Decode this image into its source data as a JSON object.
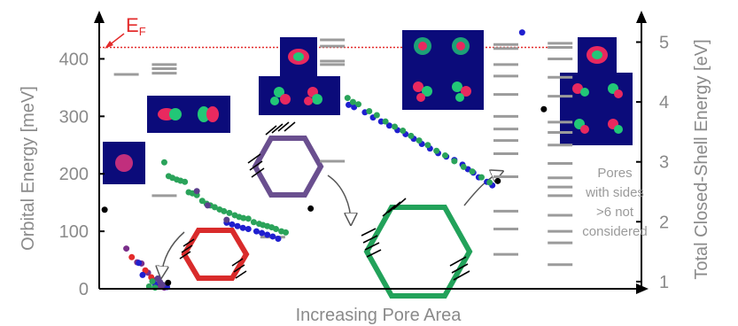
{
  "chart_data": {
    "type": "scatter",
    "xlabel": "Increasing Pore Area",
    "ylabel_left": "Orbital Energy  [meV]",
    "ylabel_right": "Total Closed-Shell Energy [eV]",
    "ylim_left": [
      0,
      450
    ],
    "yticks_left": [
      "0",
      "100",
      "200",
      "300",
      "400"
    ],
    "ylim_right": [
      0.88,
      5.2
    ],
    "yticks_right": [
      "1",
      "2",
      "3",
      "4",
      "5"
    ],
    "fermi_label": "E",
    "fermi_subscript": "F",
    "fermi_energy_meV": 420,
    "annotation_lines": [
      "Pores",
      "with sides",
      ">6 not",
      "considered"
    ],
    "orbital_levels_meV": [
      {
        "x": 0.05,
        "values": [
          373
        ]
      },
      {
        "x": 0.12,
        "values": [
          375,
          383,
          390
        ]
      },
      {
        "x": 0.12,
        "values": [
          162
        ]
      },
      {
        "x": 0.32,
        "values": [
          90
        ]
      },
      {
        "x": 0.43,
        "values": [
          433,
          422,
          396,
          390,
          222
        ]
      },
      {
        "x": 0.75,
        "values": [
          425,
          418,
          390,
          370,
          338,
          300,
          278,
          258,
          235,
          195,
          135,
          104,
          60
        ]
      },
      {
        "x": 0.85,
        "values": [
          427,
          420,
          400,
          368,
          335,
          290,
          272,
          250,
          218,
          193,
          177,
          162,
          128,
          100,
          80,
          42
        ]
      }
    ],
    "level_color": "#9b9b9b",
    "series": [
      {
        "color": "#7a2f8a",
        "points": [
          [
            0.05,
            70
          ],
          [
            0.07,
            46
          ],
          [
            0.078,
            44
          ],
          [
            0.09,
            28
          ],
          [
            0.1,
            15
          ],
          [
            0.105,
            7
          ],
          [
            0.113,
            4
          ],
          [
            0.12,
            2
          ]
        ]
      },
      {
        "color": "#e32b2b",
        "points": [
          [
            0.06,
            55
          ],
          [
            0.085,
            32
          ],
          [
            0.096,
            20
          ]
        ]
      },
      {
        "color": "#1f1fcf",
        "points": [
          [
            0.073,
            45
          ],
          [
            0.08,
            24
          ],
          [
            0.103,
            8
          ],
          [
            0.125,
            3
          ],
          [
            0.235,
            115
          ],
          [
            0.245,
            112
          ],
          [
            0.255,
            109
          ],
          [
            0.265,
            106
          ],
          [
            0.275,
            104
          ],
          [
            0.29,
            100
          ],
          [
            0.3,
            97
          ],
          [
            0.31,
            94
          ],
          [
            0.32,
            91
          ],
          [
            0.33,
            87
          ],
          [
            0.46,
            320
          ],
          [
            0.47,
            316
          ],
          [
            0.49,
            307
          ],
          [
            0.505,
            298
          ],
          [
            0.52,
            291
          ],
          [
            0.535,
            284
          ],
          [
            0.55,
            276
          ],
          [
            0.565,
            269
          ],
          [
            0.58,
            261
          ],
          [
            0.595,
            252
          ],
          [
            0.61,
            244
          ],
          [
            0.625,
            236
          ],
          [
            0.64,
            230
          ],
          [
            0.655,
            224
          ],
          [
            0.67,
            216
          ],
          [
            0.68,
            208
          ],
          [
            0.69,
            202
          ],
          [
            0.7,
            194
          ],
          [
            0.715,
            186
          ],
          [
            0.725,
            180
          ],
          [
            0.78,
            446
          ]
        ]
      },
      {
        "color": "#2aa35a",
        "points": [
          [
            0.092,
            4
          ],
          [
            0.098,
            13
          ],
          [
            0.103,
            2
          ],
          [
            0.12,
            220
          ],
          [
            0.128,
            196
          ],
          [
            0.135,
            193
          ],
          [
            0.143,
            190
          ],
          [
            0.15,
            188
          ],
          [
            0.158,
            186
          ],
          [
            0.165,
            168
          ],
          [
            0.172,
            166
          ],
          [
            0.18,
            163
          ],
          [
            0.19,
            153
          ],
          [
            0.198,
            148
          ],
          [
            0.205,
            145
          ],
          [
            0.213,
            142
          ],
          [
            0.222,
            138
          ],
          [
            0.23,
            135
          ],
          [
            0.24,
            132
          ],
          [
            0.25,
            128
          ],
          [
            0.258,
            125
          ],
          [
            0.266,
            123
          ],
          [
            0.275,
            122
          ],
          [
            0.285,
            116
          ],
          [
            0.295,
            113
          ],
          [
            0.302,
            111
          ],
          [
            0.31,
            109
          ],
          [
            0.318,
            107
          ],
          [
            0.326,
            104
          ],
          [
            0.336,
            100
          ],
          [
            0.344,
            98
          ],
          [
            0.458,
            332
          ],
          [
            0.468,
            325
          ],
          [
            0.478,
            321
          ],
          [
            0.498,
            309
          ],
          [
            0.512,
            302
          ],
          [
            0.528,
            291
          ],
          [
            0.545,
            282
          ],
          [
            0.56,
            275
          ],
          [
            0.575,
            266
          ],
          [
            0.59,
            258
          ],
          [
            0.606,
            250
          ],
          [
            0.622,
            240
          ],
          [
            0.638,
            232
          ],
          [
            0.655,
            222
          ],
          [
            0.672,
            212
          ],
          [
            0.688,
            204
          ],
          [
            0.705,
            194
          ],
          [
            0.72,
            185
          ]
        ]
      },
      {
        "color": "#5b3f8c",
        "points": [
          [
            0.108,
            18
          ],
          [
            0.112,
            12
          ],
          [
            0.117,
            7
          ],
          [
            0.18,
            170
          ],
          [
            0.2,
            145
          ],
          [
            0.235,
            120
          ]
        ]
      }
    ],
    "total_energy_points_eV": [
      [
        0.01,
        2.2
      ],
      [
        0.127,
        0.98
      ],
      [
        0.39,
        2.22
      ],
      [
        0.735,
        2.68
      ],
      [
        0.82,
        3.88
      ]
    ],
    "total_energy_color": "#000000"
  }
}
